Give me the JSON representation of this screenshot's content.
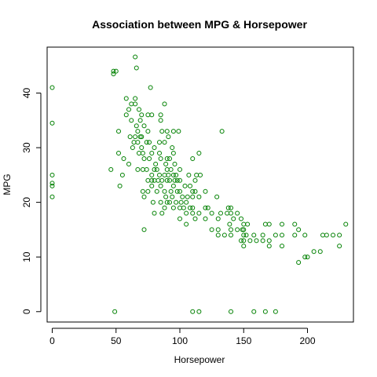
{
  "chart_data": {
    "type": "scatter",
    "title": "Association between MPG & Horsepower",
    "xlabel": "Horsepower",
    "ylabel": "MPG",
    "xlim": [
      -4,
      236
    ],
    "ylim": [
      -1.9,
      48.4
    ],
    "xticks": [
      0,
      50,
      100,
      150,
      200
    ],
    "yticks": [
      0,
      10,
      20,
      30,
      40
    ],
    "marker_color": "#008000",
    "grid": false,
    "series": [
      {
        "points": [
          [
            0,
            41
          ],
          [
            0,
            34.5
          ],
          [
            0,
            25
          ],
          [
            0,
            23.5
          ],
          [
            0,
            23
          ],
          [
            0,
            21
          ],
          [
            46,
            26
          ],
          [
            48,
            44
          ],
          [
            48,
            43.5
          ],
          [
            50,
            44
          ],
          [
            49,
            0
          ],
          [
            52,
            33
          ],
          [
            52,
            29
          ],
          [
            53,
            23
          ],
          [
            55,
            25
          ],
          [
            56,
            28
          ],
          [
            58,
            36
          ],
          [
            58,
            39
          ],
          [
            60,
            37
          ],
          [
            60,
            27
          ],
          [
            61,
            32
          ],
          [
            62,
            38
          ],
          [
            62,
            35
          ],
          [
            63,
            30
          ],
          [
            64,
            31
          ],
          [
            65,
            32
          ],
          [
            65,
            46.6
          ],
          [
            65,
            39
          ],
          [
            65,
            38
          ],
          [
            66,
            44.6
          ],
          [
            66,
            34
          ],
          [
            67,
            31
          ],
          [
            67,
            33
          ],
          [
            67,
            26
          ],
          [
            68,
            29
          ],
          [
            68,
            37
          ],
          [
            69,
            32
          ],
          [
            69,
            35
          ],
          [
            70,
            30
          ],
          [
            70,
            36
          ],
          [
            70,
            32
          ],
          [
            71,
            29
          ],
          [
            71,
            26
          ],
          [
            71,
            22
          ],
          [
            72,
            34
          ],
          [
            72,
            28
          ],
          [
            72,
            15
          ],
          [
            72,
            21
          ],
          [
            74,
            31
          ],
          [
            74,
            26
          ],
          [
            75,
            33
          ],
          [
            75,
            24
          ],
          [
            75,
            36
          ],
          [
            75,
            22
          ],
          [
            76,
            31
          ],
          [
            76,
            28
          ],
          [
            77,
            41
          ],
          [
            78,
            29
          ],
          [
            78,
            24
          ],
          [
            78,
            25
          ],
          [
            78,
            23
          ],
          [
            78,
            36
          ],
          [
            79,
            20
          ],
          [
            80,
            26
          ],
          [
            80,
            30
          ],
          [
            80,
            18
          ],
          [
            80,
            24
          ],
          [
            81,
            27
          ],
          [
            82,
            26
          ],
          [
            82,
            22
          ],
          [
            83,
            24
          ],
          [
            84,
            31
          ],
          [
            84,
            25
          ],
          [
            84,
            29
          ],
          [
            85,
            35
          ],
          [
            85,
            36
          ],
          [
            85,
            28
          ],
          [
            85,
            23
          ],
          [
            85,
            20
          ],
          [
            86,
            33
          ],
          [
            86,
            24
          ],
          [
            86,
            18
          ],
          [
            88,
            31
          ],
          [
            88,
            25
          ],
          [
            88,
            38
          ],
          [
            88,
            22
          ],
          [
            88,
            19
          ],
          [
            89,
            27
          ],
          [
            89,
            21
          ],
          [
            90,
            33
          ],
          [
            90,
            28
          ],
          [
            90,
            24
          ],
          [
            90,
            20
          ],
          [
            90,
            26
          ],
          [
            91,
            32
          ],
          [
            91,
            25
          ],
          [
            92,
            28
          ],
          [
            92,
            24
          ],
          [
            92,
            20
          ],
          [
            93,
            26
          ],
          [
            93,
            22
          ],
          [
            94,
            30
          ],
          [
            94,
            21
          ],
          [
            95,
            33
          ],
          [
            95,
            29
          ],
          [
            95,
            25
          ],
          [
            95,
            19
          ],
          [
            95,
            23
          ],
          [
            96,
            27
          ],
          [
            96,
            24
          ],
          [
            97,
            25
          ],
          [
            97,
            20
          ],
          [
            98,
            24
          ],
          [
            98,
            22
          ],
          [
            99,
            33
          ],
          [
            100,
            22
          ],
          [
            100,
            19
          ],
          [
            100,
            24
          ],
          [
            100,
            26
          ],
          [
            100,
            17
          ],
          [
            101,
            20
          ],
          [
            102,
            21
          ],
          [
            103,
            19
          ],
          [
            104,
            23
          ],
          [
            105,
            20
          ],
          [
            105,
            18
          ],
          [
            105,
            16
          ],
          [
            106,
            21
          ],
          [
            107,
            25
          ],
          [
            108,
            19
          ],
          [
            108,
            23
          ],
          [
            110,
            18
          ],
          [
            110,
            22
          ],
          [
            110,
            28
          ],
          [
            110,
            19
          ],
          [
            110,
            21
          ],
          [
            110,
            0
          ],
          [
            112,
            17
          ],
          [
            112,
            22
          ],
          [
            112,
            24
          ],
          [
            113,
            25
          ],
          [
            115,
            21
          ],
          [
            115,
            29
          ],
          [
            115,
            18
          ],
          [
            115,
            0
          ],
          [
            116,
            25
          ],
          [
            120,
            17
          ],
          [
            120,
            19
          ],
          [
            120,
            22
          ],
          [
            122,
            19
          ],
          [
            125,
            18
          ],
          [
            125,
            15
          ],
          [
            129,
            21
          ],
          [
            130,
            15
          ],
          [
            130,
            14
          ],
          [
            130,
            17
          ],
          [
            132,
            18
          ],
          [
            133,
            33
          ],
          [
            135,
            14
          ],
          [
            137,
            18
          ],
          [
            138,
            19
          ],
          [
            139,
            16
          ],
          [
            140,
            15
          ],
          [
            140,
            14
          ],
          [
            140,
            19
          ],
          [
            140,
            18
          ],
          [
            140,
            0
          ],
          [
            142,
            17
          ],
          [
            145,
            15
          ],
          [
            145,
            18
          ],
          [
            148,
            13
          ],
          [
            148,
            17
          ],
          [
            149,
            15
          ],
          [
            150,
            14
          ],
          [
            150,
            16
          ],
          [
            150,
            15
          ],
          [
            150,
            12
          ],
          [
            150,
            13
          ],
          [
            152,
            14
          ],
          [
            153,
            16
          ],
          [
            155,
            13
          ],
          [
            158,
            14
          ],
          [
            158,
            0
          ],
          [
            160,
            13
          ],
          [
            165,
            13
          ],
          [
            165,
            14
          ],
          [
            167,
            16
          ],
          [
            167,
            0
          ],
          [
            170,
            16
          ],
          [
            170,
            13
          ],
          [
            170,
            12
          ],
          [
            175,
            14
          ],
          [
            175,
            0
          ],
          [
            180,
            14
          ],
          [
            180,
            12
          ],
          [
            180,
            16
          ],
          [
            190,
            14
          ],
          [
            190,
            16
          ],
          [
            193,
            15
          ],
          [
            193,
            9
          ],
          [
            198,
            14
          ],
          [
            198,
            10
          ],
          [
            200,
            10
          ],
          [
            205,
            11
          ],
          [
            210,
            11
          ],
          [
            212,
            14
          ],
          [
            215,
            14
          ],
          [
            220,
            14
          ],
          [
            225,
            12
          ],
          [
            225,
            14
          ],
          [
            230,
            16
          ]
        ]
      }
    ]
  }
}
